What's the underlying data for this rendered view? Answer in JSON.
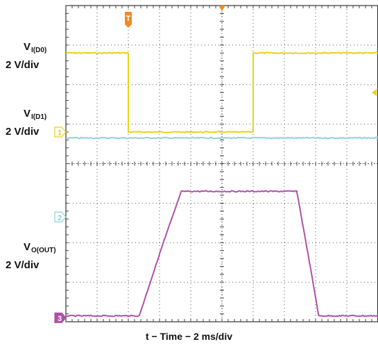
{
  "chart_data": {
    "type": "line",
    "xlabel": "t − Time − 2 ms/div",
    "divisions": {
      "x": 10,
      "y": 8
    },
    "channel_labels": [
      {
        "main": "V",
        "sub": "I(D0)",
        "scale": "2 V/div"
      },
      {
        "main": "V",
        "sub": "I(D1)",
        "scale": "2 V/div"
      },
      {
        "main": "V",
        "sub": "O(OUT)",
        "scale": "2 V/div"
      }
    ],
    "series": [
      {
        "channel": "1",
        "color": "#e8d21a",
        "ref_div": 4.8,
        "points_div": [
          [
            0,
            2.0
          ],
          [
            2.0,
            2.0
          ],
          [
            2.0,
            0
          ],
          [
            6.0,
            0
          ],
          [
            6.0,
            2.0
          ],
          [
            10,
            2.0
          ]
        ]
      },
      {
        "channel": "2",
        "color": "#8fd3d6",
        "ref_div": 2.65,
        "points_div": [
          [
            0,
            2.0
          ],
          [
            10,
            2.0
          ]
        ]
      },
      {
        "channel": "3",
        "color": "#b050a8",
        "ref_div": 0.1,
        "points_div": [
          [
            0,
            0.05
          ],
          [
            2.35,
            0.05
          ],
          [
            3.1,
            1.85
          ],
          [
            3.7,
            3.2
          ],
          [
            7.4,
            3.2
          ],
          [
            7.85,
            1.2
          ],
          [
            8.1,
            0.05
          ],
          [
            10,
            0.05
          ]
        ]
      }
    ],
    "trigger_x_div": 2.0,
    "center_marker_x_div": 5.0,
    "grid": true
  }
}
